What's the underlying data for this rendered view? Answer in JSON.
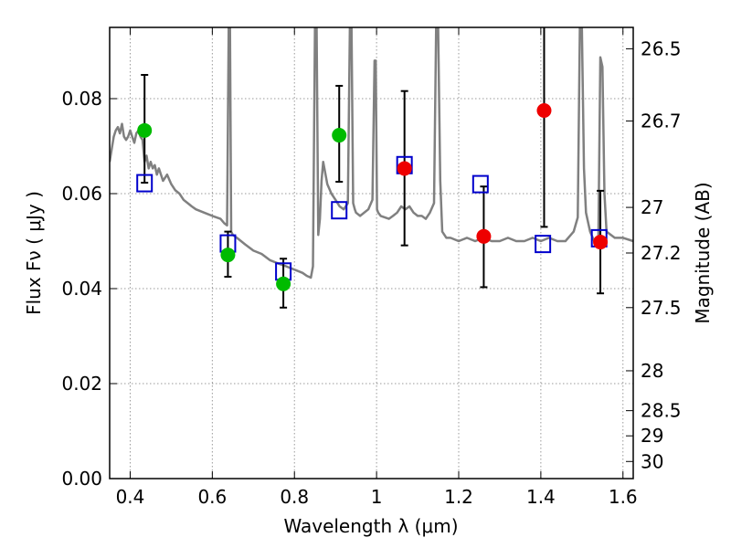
{
  "chart_data": {
    "type": "scatter",
    "xlabel": "Wavelength  λ (μm)",
    "ylabel": "Flux  Fν  ( μJy )",
    "y2label": "Magnitude (AB)",
    "xlim": [
      0.35,
      1.625
    ],
    "ylim": [
      0.0,
      0.095
    ],
    "grid": true,
    "x_ticks": [
      0.4,
      0.6,
      0.8,
      1.0,
      1.2,
      1.4,
      1.6
    ],
    "x_tick_labels": [
      "0.4",
      "0.6",
      "0.8",
      "1",
      "1.2",
      "1.4",
      "1.6"
    ],
    "y_ticks": [
      0.0,
      0.02,
      0.04,
      0.06,
      0.08
    ],
    "y_tick_labels": [
      "0.00",
      "0.02",
      "0.04",
      "0.06",
      "0.08"
    ],
    "y2_ticks": [
      {
        "label": "26.5",
        "flux": 0.0905
      },
      {
        "label": "26.7",
        "flux": 0.0753
      },
      {
        "label": "27",
        "flux": 0.0571
      },
      {
        "label": "27.2",
        "flux": 0.0475
      },
      {
        "label": "27.5",
        "flux": 0.036
      },
      {
        "label": "28",
        "flux": 0.0227
      },
      {
        "label": "28.5",
        "flux": 0.0143
      },
      {
        "label": "29",
        "flux": 0.009
      },
      {
        "label": "30",
        "flux": 0.0036
      }
    ],
    "colors": {
      "model": "#808080",
      "model_photometry": "#0000cc",
      "green_points": "#00bb00",
      "red_points": "#ee0000",
      "errorbar": "#000000",
      "grid": "#999999"
    },
    "series": [
      {
        "points": [
          {
            "x": 0.435,
            "y": 0.0733,
            "err_low": 0.011,
            "err_high": 0.0117
          },
          {
            "x": 0.638,
            "y": 0.0471,
            "err_low": 0.0046,
            "err_high": 0.0049
          },
          {
            "x": 0.773,
            "y": 0.041,
            "err_low": 0.005,
            "err_high": 0.0053
          },
          {
            "x": 0.909,
            "y": 0.0723,
            "err_low": 0.0098,
            "err_high": 0.0104
          }
        ]
      },
      {
        "points": [
          {
            "x": 1.068,
            "y": 0.0653,
            "err_low": 0.0162,
            "err_high": 0.0163
          },
          {
            "x": 1.261,
            "y": 0.051,
            "err_low": 0.0107,
            "err_high": 0.0105
          },
          {
            "x": 1.408,
            "y": 0.0775,
            "err_low": 0.0245,
            "err_high": 0.02
          },
          {
            "x": 1.545,
            "y": 0.0498,
            "err_low": 0.0108,
            "err_high": 0.0108
          }
        ]
      },
      {
        "points": [
          {
            "x": 0.435,
            "y": 0.0622
          },
          {
            "x": 0.638,
            "y": 0.0495
          },
          {
            "x": 0.773,
            "y": 0.0436
          },
          {
            "x": 0.909,
            "y": 0.0565
          },
          {
            "x": 1.068,
            "y": 0.066
          },
          {
            "x": 1.253,
            "y": 0.062
          },
          {
            "x": 1.405,
            "y": 0.0494
          },
          {
            "x": 1.542,
            "y": 0.0506
          }
        ]
      },
      {
        "type": "line",
        "x": [
          0.35,
          0.355,
          0.36,
          0.365,
          0.37,
          0.375,
          0.38,
          0.385,
          0.39,
          0.395,
          0.4,
          0.405,
          0.41,
          0.415,
          0.42,
          0.425,
          0.43,
          0.435,
          0.44,
          0.445,
          0.45,
          0.455,
          0.46,
          0.465,
          0.47,
          0.48,
          0.49,
          0.5,
          0.51,
          0.52,
          0.53,
          0.54,
          0.55,
          0.56,
          0.58,
          0.6,
          0.62,
          0.63,
          0.636,
          0.64,
          0.643,
          0.646,
          0.65,
          0.66,
          0.68,
          0.7,
          0.72,
          0.74,
          0.76,
          0.78,
          0.8,
          0.82,
          0.83,
          0.84,
          0.845,
          0.85,
          0.854,
          0.858,
          0.862,
          0.866,
          0.87,
          0.88,
          0.89,
          0.9,
          0.91,
          0.92,
          0.93,
          0.935,
          0.939,
          0.943,
          0.947,
          0.95,
          0.96,
          0.98,
          0.99,
          0.995,
          0.998,
          1.001,
          1.004,
          1.01,
          1.03,
          1.04,
          1.05,
          1.06,
          1.07,
          1.08,
          1.09,
          1.1,
          1.11,
          1.12,
          1.13,
          1.14,
          1.145,
          1.15,
          1.155,
          1.16,
          1.17,
          1.18,
          1.2,
          1.22,
          1.24,
          1.26,
          1.28,
          1.3,
          1.32,
          1.34,
          1.36,
          1.38,
          1.4,
          1.42,
          1.44,
          1.46,
          1.48,
          1.49,
          1.495,
          1.5,
          1.505,
          1.51,
          1.52,
          1.53,
          1.54,
          1.545,
          1.55,
          1.555,
          1.56,
          1.58,
          1.6,
          1.625
        ],
        "y": [
          0.0667,
          0.0693,
          0.072,
          0.0733,
          0.074,
          0.0727,
          0.0747,
          0.072,
          0.0713,
          0.072,
          0.0733,
          0.072,
          0.0707,
          0.0727,
          0.0733,
          0.072,
          0.0713,
          0.0667,
          0.068,
          0.0653,
          0.0667,
          0.0653,
          0.066,
          0.064,
          0.0653,
          0.0627,
          0.064,
          0.062,
          0.0607,
          0.06,
          0.0587,
          0.058,
          0.0573,
          0.0567,
          0.056,
          0.0553,
          0.0547,
          0.0537,
          0.0533,
          0.095,
          0.095,
          0.052,
          0.0513,
          0.0507,
          0.0493,
          0.048,
          0.0473,
          0.046,
          0.0453,
          0.0447,
          0.044,
          0.0433,
          0.0427,
          0.0423,
          0.0447,
          0.095,
          0.095,
          0.0513,
          0.0547,
          0.0627,
          0.0667,
          0.062,
          0.06,
          0.0587,
          0.0573,
          0.0567,
          0.058,
          0.095,
          0.095,
          0.058,
          0.0567,
          0.056,
          0.0553,
          0.0567,
          0.0587,
          0.088,
          0.088,
          0.0567,
          0.056,
          0.0553,
          0.0547,
          0.0553,
          0.056,
          0.0573,
          0.0567,
          0.0573,
          0.056,
          0.0553,
          0.0553,
          0.0547,
          0.056,
          0.058,
          0.095,
          0.095,
          0.0627,
          0.052,
          0.0507,
          0.0507,
          0.05,
          0.0507,
          0.05,
          0.0507,
          0.05,
          0.05,
          0.0507,
          0.05,
          0.05,
          0.0507,
          0.05,
          0.0507,
          0.05,
          0.05,
          0.052,
          0.055,
          0.095,
          0.095,
          0.0653,
          0.056,
          0.052,
          0.05,
          0.0493,
          0.0887,
          0.0867,
          0.06,
          0.052,
          0.0507,
          0.0507,
          0.05
        ]
      }
    ]
  }
}
